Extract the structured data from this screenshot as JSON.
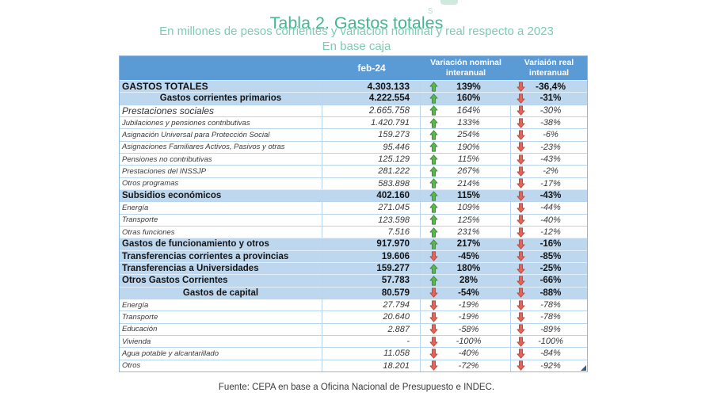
{
  "page": {
    "title": "Tabla 2. Gastos totales",
    "subtitle_line1": "En millones de pesos corrientes y variación nominal y real respecto a 2023",
    "subtitle_line2": "En base caja",
    "footer": "Fuente: CEPA en base a Oficina Nacional de Presupuesto e INDEC.",
    "remnant_text": "s"
  },
  "colors": {
    "header_bg": "#5B9BD5",
    "band_bg": "#BDD7EE",
    "title_green": "#45b694",
    "subtitle_green": "#7ccbb2",
    "up_arrow": "#5cb54e",
    "up_arrow_border": "#3c8a36",
    "down_arrow": "#e2655a",
    "down_arrow_border": "#b8463c"
  },
  "chart_data": {
    "type": "table",
    "title": "Tabla 2. Gastos totales",
    "unit_note": "En millones de pesos corrientes y variación nominal y real respecto a 2023",
    "basis_note": "En base caja",
    "columns": [
      "",
      "feb-24",
      "Variación nominal interanual",
      "Variaión real interanual"
    ],
    "rows": [
      {
        "label": "GASTOS TOTALES",
        "feb24": "4.303.133",
        "nominal_dir": "up",
        "nominal": "139%",
        "real_dir": "down",
        "real": "-36,4%",
        "style": "total"
      },
      {
        "label": "Gastos corrientes primarios",
        "feb24": "4.222.554",
        "nominal_dir": "up",
        "nominal": "160%",
        "real_dir": "down",
        "real": "-31%",
        "style": "center"
      },
      {
        "label": "Prestaciones sociales",
        "feb24": "2.665.758",
        "nominal_dir": "up",
        "nominal": "164%",
        "real_dir": "down",
        "real": "-30%",
        "style": "em"
      },
      {
        "label": "Jubilaciones y pensiones contributivas",
        "feb24": "1.420.791",
        "nominal_dir": "up",
        "nominal": "133%",
        "real_dir": "down",
        "real": "-38%",
        "style": "item"
      },
      {
        "label": "Asignación Universal para Protección Social",
        "feb24": "159.273",
        "nominal_dir": "up",
        "nominal": "254%",
        "real_dir": "down",
        "real": "-6%",
        "style": "item"
      },
      {
        "label": "Asignaciones Familiares Activos, Pasivos y otras",
        "feb24": "95.446",
        "nominal_dir": "up",
        "nominal": "190%",
        "real_dir": "down",
        "real": "-23%",
        "style": "item"
      },
      {
        "label": "Pensiones no contributivas",
        "feb24": "125.129",
        "nominal_dir": "up",
        "nominal": "115%",
        "real_dir": "down",
        "real": "-43%",
        "style": "item"
      },
      {
        "label": "Prestaciones del INSSJP",
        "feb24": "281.222",
        "nominal_dir": "up",
        "nominal": "267%",
        "real_dir": "down",
        "real": "-2%",
        "style": "item"
      },
      {
        "label": "Otros programas",
        "feb24": "583.898",
        "nominal_dir": "up",
        "nominal": "214%",
        "real_dir": "down",
        "real": "-17%",
        "style": "item"
      },
      {
        "label": "Subsidios económicos",
        "feb24": "402.160",
        "nominal_dir": "up",
        "nominal": "115%",
        "real_dir": "down",
        "real": "-43%",
        "style": "bold"
      },
      {
        "label": "Energía",
        "feb24": "271.045",
        "nominal_dir": "up",
        "nominal": "109%",
        "real_dir": "down",
        "real": "-44%",
        "style": "item"
      },
      {
        "label": "Transporte",
        "feb24": "123.598",
        "nominal_dir": "up",
        "nominal": "125%",
        "real_dir": "down",
        "real": "-40%",
        "style": "item"
      },
      {
        "label": "Otras funciones",
        "feb24": "7.516",
        "nominal_dir": "up",
        "nominal": "231%",
        "real_dir": "down",
        "real": "-12%",
        "style": "item"
      },
      {
        "label": "Gastos de funcionamiento y otros",
        "feb24": "917.970",
        "nominal_dir": "up",
        "nominal": "217%",
        "real_dir": "down",
        "real": "-16%",
        "style": "bold"
      },
      {
        "label": "Transferencias corrientes a provincias",
        "feb24": "19.606",
        "nominal_dir": "down",
        "nominal": "-45%",
        "real_dir": "down",
        "real": "-85%",
        "style": "bold"
      },
      {
        "label": "Transferencias a Universidades",
        "feb24": "159.277",
        "nominal_dir": "up",
        "nominal": "180%",
        "real_dir": "down",
        "real": "-25%",
        "style": "bold"
      },
      {
        "label": "Otros Gastos Corrientes",
        "feb24": "57.783",
        "nominal_dir": "up",
        "nominal": "28%",
        "real_dir": "down",
        "real": "-66%",
        "style": "bold"
      },
      {
        "label": "Gastos de capital",
        "feb24": "80.579",
        "nominal_dir": "down",
        "nominal": "-54%",
        "real_dir": "down",
        "real": "-88%",
        "style": "center"
      },
      {
        "label": "Energía",
        "feb24": "27.794",
        "nominal_dir": "down",
        "nominal": "-19%",
        "real_dir": "down",
        "real": "-78%",
        "style": "item"
      },
      {
        "label": "Transporte",
        "feb24": "20.640",
        "nominal_dir": "down",
        "nominal": "-19%",
        "real_dir": "down",
        "real": "-78%",
        "style": "item"
      },
      {
        "label": "Educación",
        "feb24": "2.887",
        "nominal_dir": "down",
        "nominal": "-58%",
        "real_dir": "down",
        "real": "-89%",
        "style": "item"
      },
      {
        "label": "Vivienda",
        "feb24": "-",
        "nominal_dir": "down",
        "nominal": "-100%",
        "real_dir": "down",
        "real": "-100%",
        "style": "item"
      },
      {
        "label": "Agua potable y alcantarillado",
        "feb24": "11.058",
        "nominal_dir": "down",
        "nominal": "-40%",
        "real_dir": "down",
        "real": "-84%",
        "style": "item"
      },
      {
        "label": "Otros",
        "feb24": "18.201",
        "nominal_dir": "down",
        "nominal": "-72%",
        "real_dir": "down",
        "real": "-92%",
        "style": "item"
      }
    ]
  }
}
